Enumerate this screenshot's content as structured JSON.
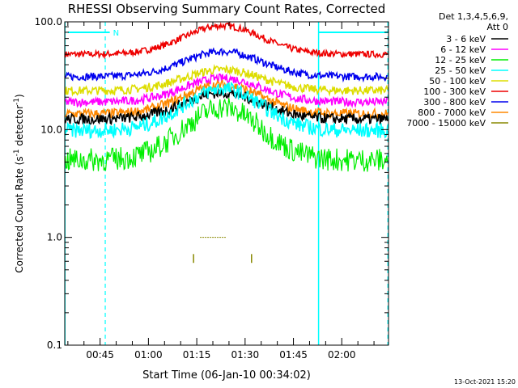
{
  "chart_data": {
    "type": "line",
    "title": "RHESSI Observing Summary Count Rates, Corrected",
    "xlabel": "Start Time (06-Jan-10 00:34:02)",
    "ylabel": "Corrected Count Rate (s",
    "ylabel_sup": "-1",
    "ylabel_mid": " detector",
    "ylabel_end": ")",
    "y_scale": "log",
    "ylim": [
      0.1,
      100.0
    ],
    "y_ticks": [
      {
        "v": 0.1,
        "label": "0.1"
      },
      {
        "v": 1.0,
        "label": "1.0"
      },
      {
        "v": 10.0,
        "label": "10.0"
      },
      {
        "v": 100.0,
        "label": "100.0"
      }
    ],
    "xlim_minutes": [
      34.033,
      134.5
    ],
    "x_ticks": [
      {
        "m": 45,
        "label": "00:45"
      },
      {
        "m": 60,
        "label": "01:00"
      },
      {
        "m": 75,
        "label": "01:15"
      },
      {
        "m": 90,
        "label": "01:30"
      },
      {
        "m": 105,
        "label": "01:45"
      },
      {
        "m": 120,
        "label": "02:00"
      }
    ],
    "legend": {
      "header": [
        "Det 1,3,4,5,6,9,",
        "Att 0"
      ],
      "placement": "right"
    },
    "series": [
      {
        "name": "3 - 6 keV",
        "color": "#000000",
        "base": 12.5,
        "peak": 22,
        "noise": 0.05
      },
      {
        "name": "6 - 12 keV",
        "color": "#ff00ff",
        "base": 18,
        "peak": 30,
        "noise": 0.04
      },
      {
        "name": "12 - 25 keV",
        "color": "#00ee00",
        "base": 5.2,
        "peak": 16,
        "noise": 0.11
      },
      {
        "name": "25 - 50 keV",
        "color": "#00ffff",
        "base": 9.8,
        "peak": 24,
        "noise": 0.07
      },
      {
        "name": "50 - 100 keV",
        "color": "#dddd00",
        "base": 23,
        "peak": 36,
        "noise": 0.04
      },
      {
        "name": "100 - 300 keV",
        "color": "#ee0000",
        "base": 50,
        "peak": 92,
        "noise": 0.03
      },
      {
        "name": "300 - 800 keV",
        "color": "#0000ee",
        "base": 31,
        "peak": 53,
        "noise": 0.035
      },
      {
        "name": "800 - 7000 keV",
        "color": "#ff8800",
        "base": 14,
        "peak": 26,
        "noise": 0.045
      },
      {
        "name": "7000 - 15000 keV",
        "color": "#888800",
        "base": 1.0,
        "peak": 1.0,
        "noise": 0
      }
    ],
    "peak_center_minutes": 83,
    "peak_width_minutes": 12,
    "night_intervals_minutes": [
      [
        34.1,
        46.6
      ],
      [
        112.8,
        134.3
      ]
    ],
    "saa_flag_label": "N",
    "saa_flag_interval_minutes": [
      35,
      48
    ],
    "grid": false
  },
  "footer": {
    "timestamp": "13-Oct-2021 15:20"
  },
  "colors": {
    "background": "#ffffff",
    "axes": "#000000",
    "night_lines": "#00ffff"
  }
}
